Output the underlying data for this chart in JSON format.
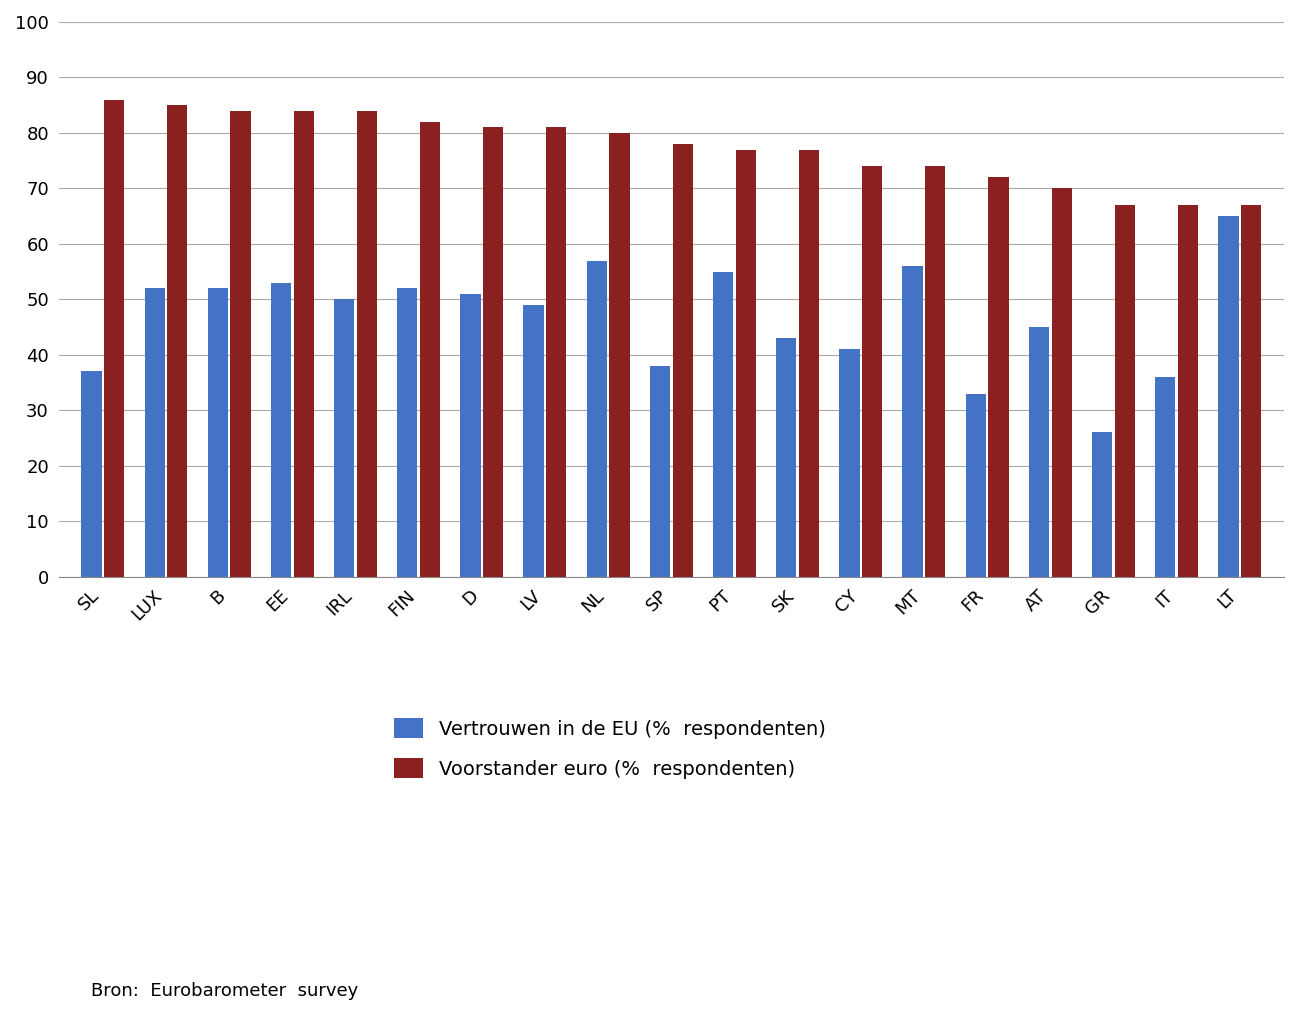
{
  "categories": [
    "SL",
    "LUX",
    "B",
    "EE",
    "IRL",
    "FIN",
    "D",
    "LV",
    "NL",
    "SP",
    "PT",
    "SK",
    "CY",
    "MT",
    "FR",
    "AT",
    "GR",
    "IT",
    "LT"
  ],
  "eu_trust": [
    37,
    52,
    52,
    53,
    50,
    52,
    51,
    49,
    57,
    38,
    55,
    43,
    41,
    56,
    33,
    45,
    26,
    36,
    65
  ],
  "euro_support": [
    86,
    85,
    84,
    84,
    84,
    82,
    81,
    81,
    80,
    78,
    77,
    77,
    74,
    74,
    72,
    70,
    67,
    67,
    67
  ],
  "eu_color": "#4472C4",
  "euro_color": "#8B2020",
  "ylim": [
    0,
    100
  ],
  "yticks": [
    0,
    10,
    20,
    30,
    40,
    50,
    60,
    70,
    80,
    90,
    100
  ],
  "legend_eu": "Vertrouwen in de EU (%  respondenten)",
  "legend_euro": "Voorstander euro (%  respondenten)",
  "source": "Bron:  Eurobarometer  survey",
  "bg_color": "#FFFFFF",
  "grid_color": "#AAAAAA",
  "bar_width": 0.32,
  "bar_gap": 0.04
}
